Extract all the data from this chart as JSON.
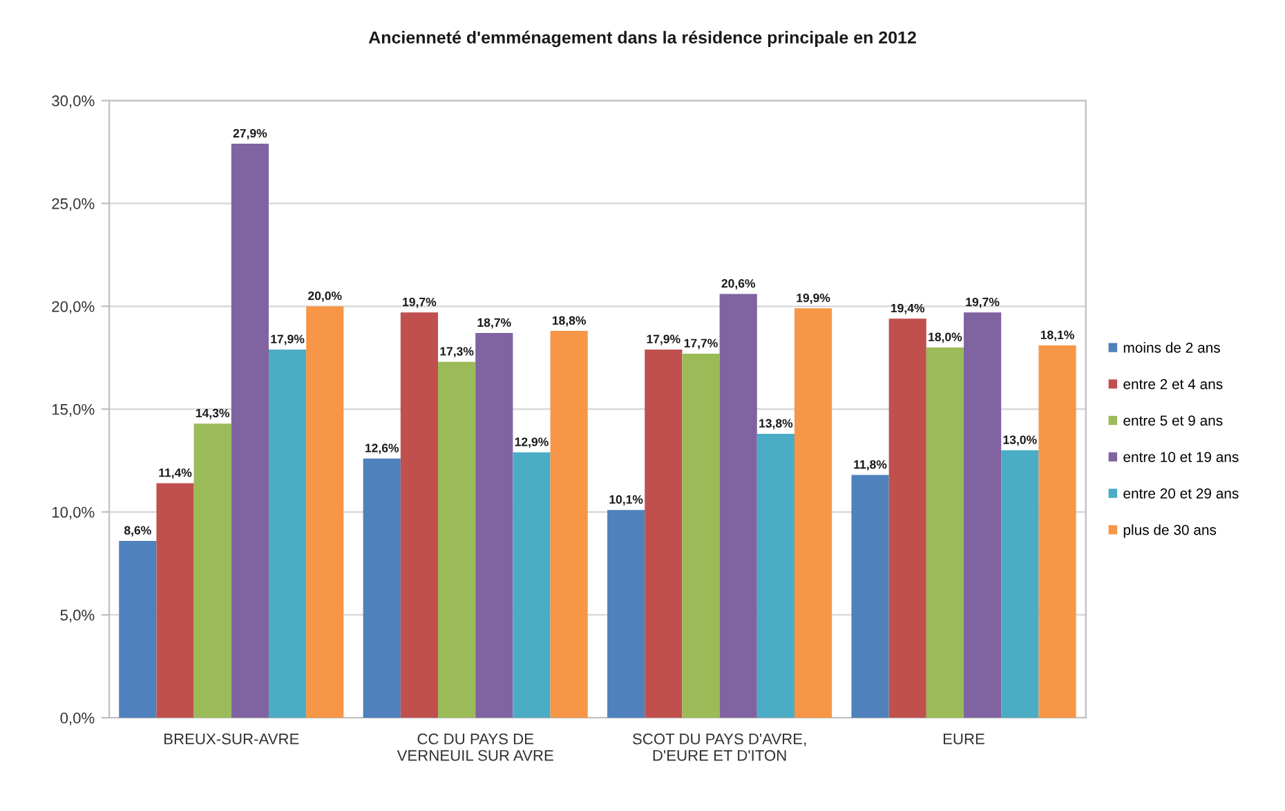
{
  "chart_data": {
    "type": "bar",
    "title": "Ancienneté d'emménagement dans la résidence principale en 2012",
    "categories": [
      "BREUX-SUR-AVRE",
      "CC DU PAYS DE\nVERNEUIL SUR AVRE",
      "SCOT DU PAYS D'AVRE,\nD'EURE ET D'ITON",
      "EURE"
    ],
    "series": [
      {
        "name": "moins de 2 ans",
        "color": "#4f81bd",
        "values": [
          8.6,
          12.6,
          10.1,
          11.8
        ],
        "value_labels": [
          "8,6%",
          "12,6%",
          "10,1%",
          "11,8%"
        ]
      },
      {
        "name": "entre 2 et 4 ans",
        "color": "#c0504d",
        "values": [
          11.4,
          19.7,
          17.9,
          19.4
        ],
        "value_labels": [
          "11,4%",
          "19,7%",
          "17,9%",
          "19,4%"
        ]
      },
      {
        "name": "entre 5 et 9 ans",
        "color": "#9bbb59",
        "values": [
          14.3,
          17.3,
          17.7,
          18.0
        ],
        "value_labels": [
          "14,3%",
          "17,3%",
          "17,7%",
          "18,0%"
        ]
      },
      {
        "name": "entre 10 et 19 ans",
        "color": "#8064a2",
        "values": [
          27.9,
          18.7,
          20.6,
          19.7
        ],
        "value_labels": [
          "27,9%",
          "18,7%",
          "20,6%",
          "19,7%"
        ]
      },
      {
        "name": "entre 20 et 29 ans",
        "color": "#4bacc6",
        "values": [
          17.9,
          12.9,
          13.8,
          13.0
        ],
        "value_labels": [
          "17,9%",
          "12,9%",
          "13,8%",
          "13,0%"
        ]
      },
      {
        "name": "plus de 30 ans",
        "color": "#f79646",
        "values": [
          20.0,
          18.8,
          19.9,
          18.1
        ],
        "value_labels": [
          "20,0%",
          "18,8%",
          "19,9%",
          "18,1%"
        ]
      }
    ],
    "ylim": [
      0,
      30
    ],
    "yticks": [
      {
        "value": 0,
        "label": "0,0%"
      },
      {
        "value": 5,
        "label": "5,0%"
      },
      {
        "value": 10,
        "label": "10,0%"
      },
      {
        "value": 15,
        "label": "15,0%"
      },
      {
        "value": 20,
        "label": "20,0%"
      },
      {
        "value": 25,
        "label": "25,0%"
      },
      {
        "value": 30,
        "label": "30,0%"
      }
    ],
    "grid": "y",
    "legend": "right"
  }
}
